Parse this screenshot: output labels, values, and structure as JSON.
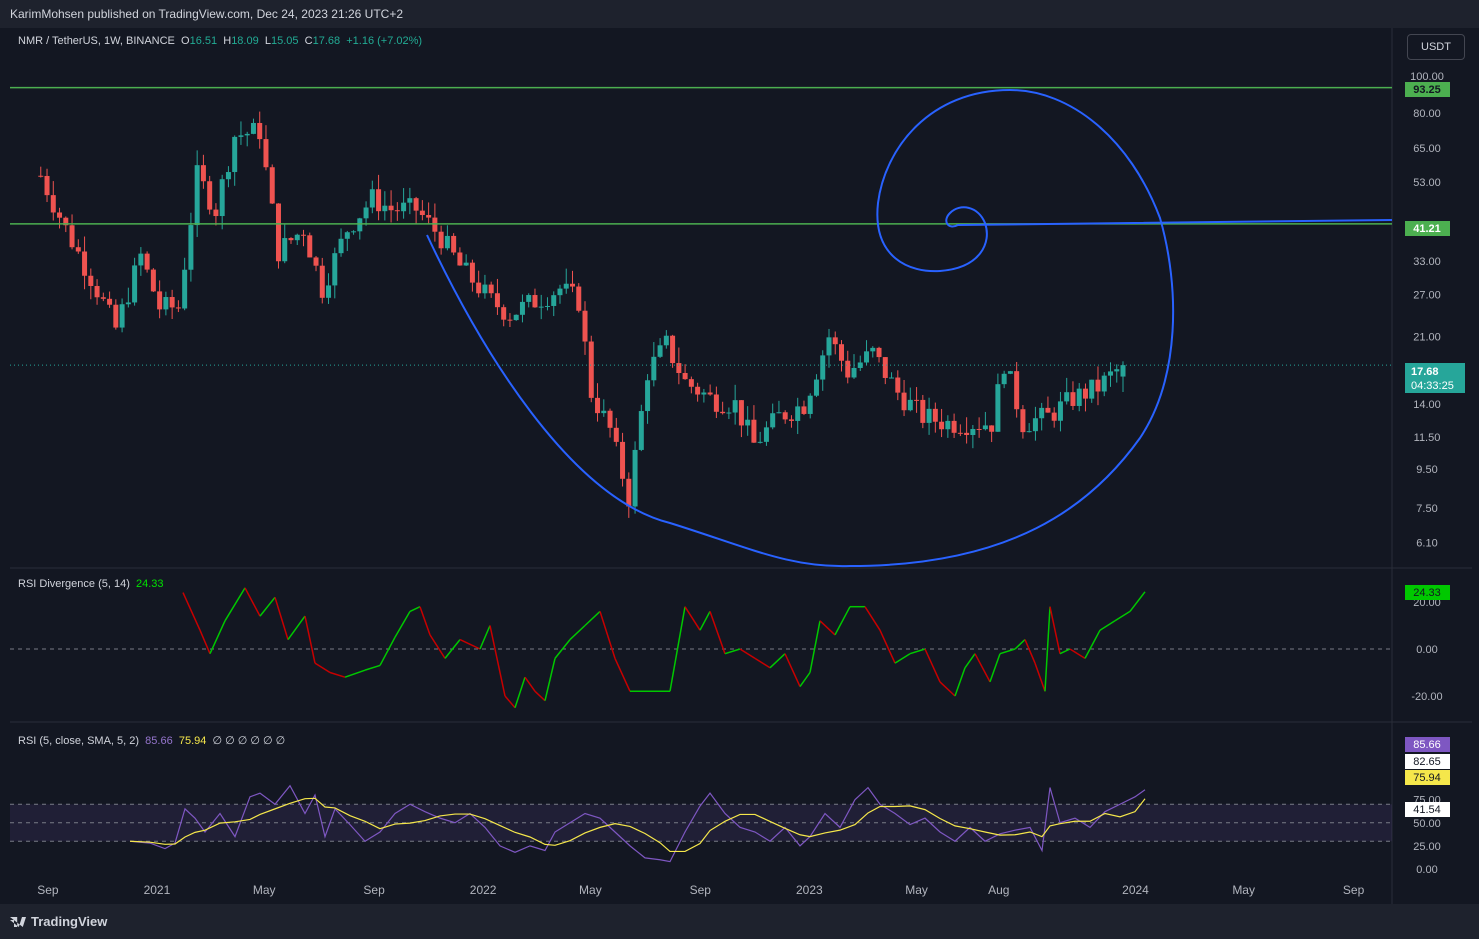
{
  "header": {
    "publisher_line": "KarimMohsen published on TradingView.com, Dec 24, 2023 21:26 UTC+2",
    "currency_button": "USDT"
  },
  "footer": {
    "brand": "TradingView"
  },
  "legend_main": {
    "symbol": "NMR / TetherUS, 1W, BINANCE",
    "o_label": "O",
    "o_value": "16.51",
    "h_label": "H",
    "h_value": "18.09",
    "l_label": "L",
    "l_value": "15.05",
    "c_label": "C",
    "c_value": "17.68",
    "change": "+1.16 (+7.02%)"
  },
  "legend_rsi_div": {
    "name": "RSI Divergence (5, 14)",
    "value": "24.33"
  },
  "legend_rsi": {
    "name": "RSI (5, close, SMA, 5, 2)",
    "value1": "85.66",
    "value2": "75.94",
    "zeros": "∅ ∅ ∅ ∅ ∅ ∅"
  },
  "price_labels": {
    "upper_line": "93.25",
    "lower_line": "41.21",
    "last_price": "17.68",
    "countdown": "04:33:25"
  },
  "rsi_div_label": "24.33",
  "rsi_labels": {
    "rsi": "85.66",
    "a": "82.65",
    "sma": "75.94",
    "b": "41.54"
  },
  "colors": {
    "up": "#26a69a",
    "down": "#ef5350",
    "hline": "#4caf50",
    "spiral": "#2962ff",
    "div_up": "#00c800",
    "div_down": "#c80000",
    "rsi": "#7e57c2",
    "rsi_ma": "#f5e74b"
  },
  "chart_data": [
    {
      "type": "candlestick",
      "title": "NMR / TetherUS, 1W, BINANCE",
      "y_scale": "log",
      "y_ticks": [
        100.0,
        80.0,
        65.0,
        53.0,
        33.0,
        27.0,
        21.0,
        14.0,
        11.5,
        9.5,
        7.5,
        6.1
      ],
      "x_ticks": [
        "Sep",
        "2021",
        "May",
        "Sep",
        "2022",
        "May",
        "Sep",
        "2023",
        "May",
        "Aug",
        "2024",
        "May",
        "Sep"
      ],
      "horizontal_levels": [
        93.25,
        41.21
      ],
      "last_price": 17.68,
      "ohlc_last": {
        "open": 16.51,
        "high": 18.09,
        "low": 15.05,
        "close": 17.68
      },
      "close_path": [
        {
          "date": "2020-08-24",
          "close": 55
        },
        {
          "date": "2020-09-21",
          "close": 40
        },
        {
          "date": "2020-10-19",
          "close": 30
        },
        {
          "date": "2020-11-16",
          "close": 22
        },
        {
          "date": "2020-12-14",
          "close": 34
        },
        {
          "date": "2021-01-04",
          "close": 25
        },
        {
          "date": "2021-01-25",
          "close": 25
        },
        {
          "date": "2021-02-15",
          "close": 55
        },
        {
          "date": "2021-03-08",
          "close": 45
        },
        {
          "date": "2021-03-29",
          "close": 70
        },
        {
          "date": "2021-04-26",
          "close": 72
        },
        {
          "date": "2021-05-17",
          "close": 35
        },
        {
          "date": "2021-06-14",
          "close": 40
        },
        {
          "date": "2021-07-05",
          "close": 28
        },
        {
          "date": "2021-08-02",
          "close": 40
        },
        {
          "date": "2021-08-30",
          "close": 48
        },
        {
          "date": "2021-09-20",
          "close": 45
        },
        {
          "date": "2021-10-18",
          "close": 45
        },
        {
          "date": "2021-11-15",
          "close": 38
        },
        {
          "date": "2021-12-06",
          "close": 32
        },
        {
          "date": "2022-01-10",
          "close": 26
        },
        {
          "date": "2022-01-31",
          "close": 24
        },
        {
          "date": "2022-02-28",
          "close": 26
        },
        {
          "date": "2022-03-28",
          "close": 28
        },
        {
          "date": "2022-04-18",
          "close": 26
        },
        {
          "date": "2022-05-02",
          "close": 15
        },
        {
          "date": "2022-05-23",
          "close": 12
        },
        {
          "date": "2022-06-13",
          "close": 8
        },
        {
          "date": "2022-07-04",
          "close": 17
        },
        {
          "date": "2022-07-25",
          "close": 20
        },
        {
          "date": "2022-08-15",
          "close": 16
        },
        {
          "date": "2022-09-12",
          "close": 14.5
        },
        {
          "date": "2022-10-10",
          "close": 14
        },
        {
          "date": "2022-10-31",
          "close": 11
        },
        {
          "date": "2022-11-28",
          "close": 13
        },
        {
          "date": "2022-12-26",
          "close": 14
        },
        {
          "date": "2023-01-23",
          "close": 21
        },
        {
          "date": "2023-02-13",
          "close": 17
        },
        {
          "date": "2023-03-13",
          "close": 19
        },
        {
          "date": "2023-04-10",
          "close": 15
        },
        {
          "date": "2023-05-08",
          "close": 13
        },
        {
          "date": "2023-06-05",
          "close": 12.5
        },
        {
          "date": "2023-07-03",
          "close": 12.5
        },
        {
          "date": "2023-07-24",
          "close": 12.5
        },
        {
          "date": "2023-08-07",
          "close": 18
        },
        {
          "date": "2023-08-28",
          "close": 12.5
        },
        {
          "date": "2023-09-25",
          "close": 13
        },
        {
          "date": "2023-10-23",
          "close": 14.5
        },
        {
          "date": "2023-11-20",
          "close": 15.5
        },
        {
          "date": "2023-12-18",
          "close": 17.68
        }
      ]
    },
    {
      "type": "line",
      "title": "RSI Divergence (5, 14)",
      "y_ticks": [
        20.0,
        0.0,
        -20.0
      ],
      "last_value": 24.33
    },
    {
      "type": "line",
      "title": "RSI (5, close, SMA, 5, 2)",
      "y_ticks": [
        100.0,
        75.0,
        50.0,
        25.0,
        0.0
      ],
      "band_levels": [
        70,
        50,
        30
      ],
      "series": [
        {
          "name": "RSI",
          "last": 85.66
        },
        {
          "name": "SMA",
          "last": 75.94
        }
      ]
    }
  ]
}
